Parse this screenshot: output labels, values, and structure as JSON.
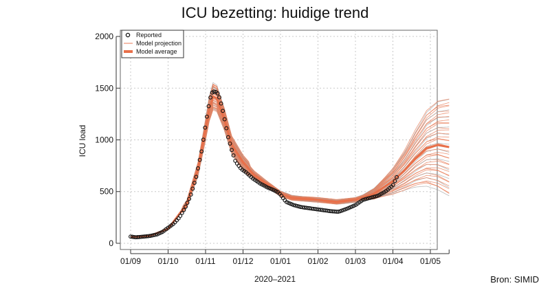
{
  "chart_data": {
    "type": "line",
    "title": "ICU bezetting: huidige trend",
    "xlabel": "2020–2021",
    "ylabel": "ICU load",
    "source": "Bron: SIMID",
    "x_tick_labels": [
      "01/09",
      "01/10",
      "01/11",
      "01/12",
      "01/01",
      "01/02",
      "01/03",
      "01/04",
      "01/05"
    ],
    "x_domain_months": [
      0,
      8.5
    ],
    "y_ticks": [
      0,
      500,
      1000,
      1500,
      2000
    ],
    "ylim": [
      -60,
      2060
    ],
    "grid": true,
    "legend_position": "top-left",
    "legend": [
      {
        "label": "Reported",
        "style": "circle"
      },
      {
        "label": "Model projection",
        "style": "thin-line"
      },
      {
        "label": "Model average",
        "style": "thick-line"
      }
    ],
    "colors": {
      "reported": "#111111",
      "projection": "#e87a55",
      "average": "#e8704a",
      "projection_grey": "#aaaaaa",
      "grid": "#c8c8c8"
    },
    "series": [
      {
        "name": "Reported",
        "x_month": [
          0.0,
          0.15,
          0.3,
          0.5,
          0.7,
          0.85,
          1.0,
          1.15,
          1.3,
          1.45,
          1.6,
          1.75,
          1.9,
          1.98,
          2.06,
          2.12,
          2.18,
          2.25,
          2.32,
          2.38,
          2.45,
          2.52,
          2.6,
          2.7,
          2.8,
          2.95,
          3.1,
          3.25,
          3.45,
          3.65,
          3.85,
          3.95,
          4.0,
          4.15,
          4.35,
          4.55,
          4.75,
          4.95,
          5.15,
          5.35,
          5.55,
          5.75,
          6.0,
          6.2,
          6.4,
          6.6,
          6.8,
          7.0,
          7.1
        ],
        "y": [
          65,
          58,
          63,
          70,
          85,
          110,
          150,
          190,
          250,
          340,
          460,
          640,
          900,
          1100,
          1280,
          1400,
          1460,
          1470,
          1450,
          1400,
          1300,
          1180,
          1030,
          900,
          790,
          720,
          680,
          630,
          580,
          540,
          510,
          490,
          470,
          400,
          370,
          350,
          340,
          330,
          320,
          310,
          305,
          330,
          370,
          420,
          440,
          460,
          500,
          560,
          640
        ]
      },
      {
        "name": "Model average",
        "x_month": [
          0.0,
          0.5,
          1.0,
          1.5,
          1.8,
          2.0,
          2.1,
          2.2,
          2.3,
          2.5,
          2.7,
          3.0,
          3.3,
          3.6,
          4.0,
          4.3,
          4.6,
          5.0,
          5.5,
          6.0,
          6.5,
          7.0,
          7.3,
          7.6,
          7.9,
          8.2,
          8.5
        ],
        "y": [
          60,
          70,
          140,
          380,
          720,
          1100,
          1300,
          1420,
          1400,
          1200,
          950,
          780,
          660,
          580,
          480,
          440,
          430,
          420,
          400,
          420,
          480,
          600,
          700,
          820,
          920,
          950,
          930
        ]
      }
    ]
  }
}
